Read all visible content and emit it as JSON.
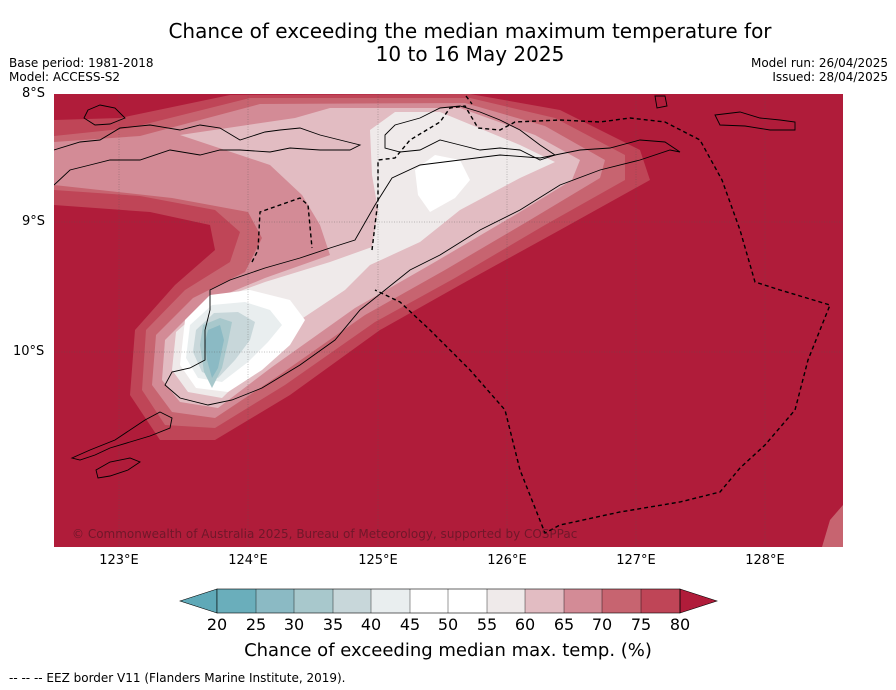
{
  "header": {
    "title_line1": "Chance of exceeding the median maximum temperature for",
    "title_line2": "10 to 16 May 2025",
    "base_period": "Base period: 1981-2018",
    "model": "Model: ACCESS-S2",
    "model_run": "Model run: 26/04/2025",
    "issued": "Issued: 28/04/2025"
  },
  "map": {
    "latitude_labels": [
      "8°S",
      "9°S",
      "10°S"
    ],
    "longitude_labels": [
      "123°E",
      "124°E",
      "125°E",
      "126°E",
      "127°E",
      "128°E"
    ],
    "copyright": "© Commonwealth of Australia 2025, Bureau of Meteorology, supported by COSPPac",
    "extent": {
      "lon_min": 122.5,
      "lon_max": 128.6,
      "lat_min": -11.5,
      "lat_max": -8.0
    },
    "grid": true
  },
  "colorbar": {
    "title": "Chance of exceeding median max. temp. (%)",
    "labels": [
      "20",
      "25",
      "30",
      "35",
      "40",
      "45",
      "50",
      "55",
      "60",
      "65",
      "70",
      "75",
      "80"
    ],
    "colors": [
      "#5fa9b8",
      "#6aaebb",
      "#8bbac4",
      "#a8c8cc",
      "#c8d7da",
      "#e9eeef",
      "#ffffff",
      "#ffffff",
      "#efeaea",
      "#e2bcc2",
      "#d38b96",
      "#c76470",
      "#bf4557",
      "#b01c3a"
    ]
  },
  "footnote": "--  --  -- EEZ border V11 (Flanders Marine Institute, 2019)."
}
